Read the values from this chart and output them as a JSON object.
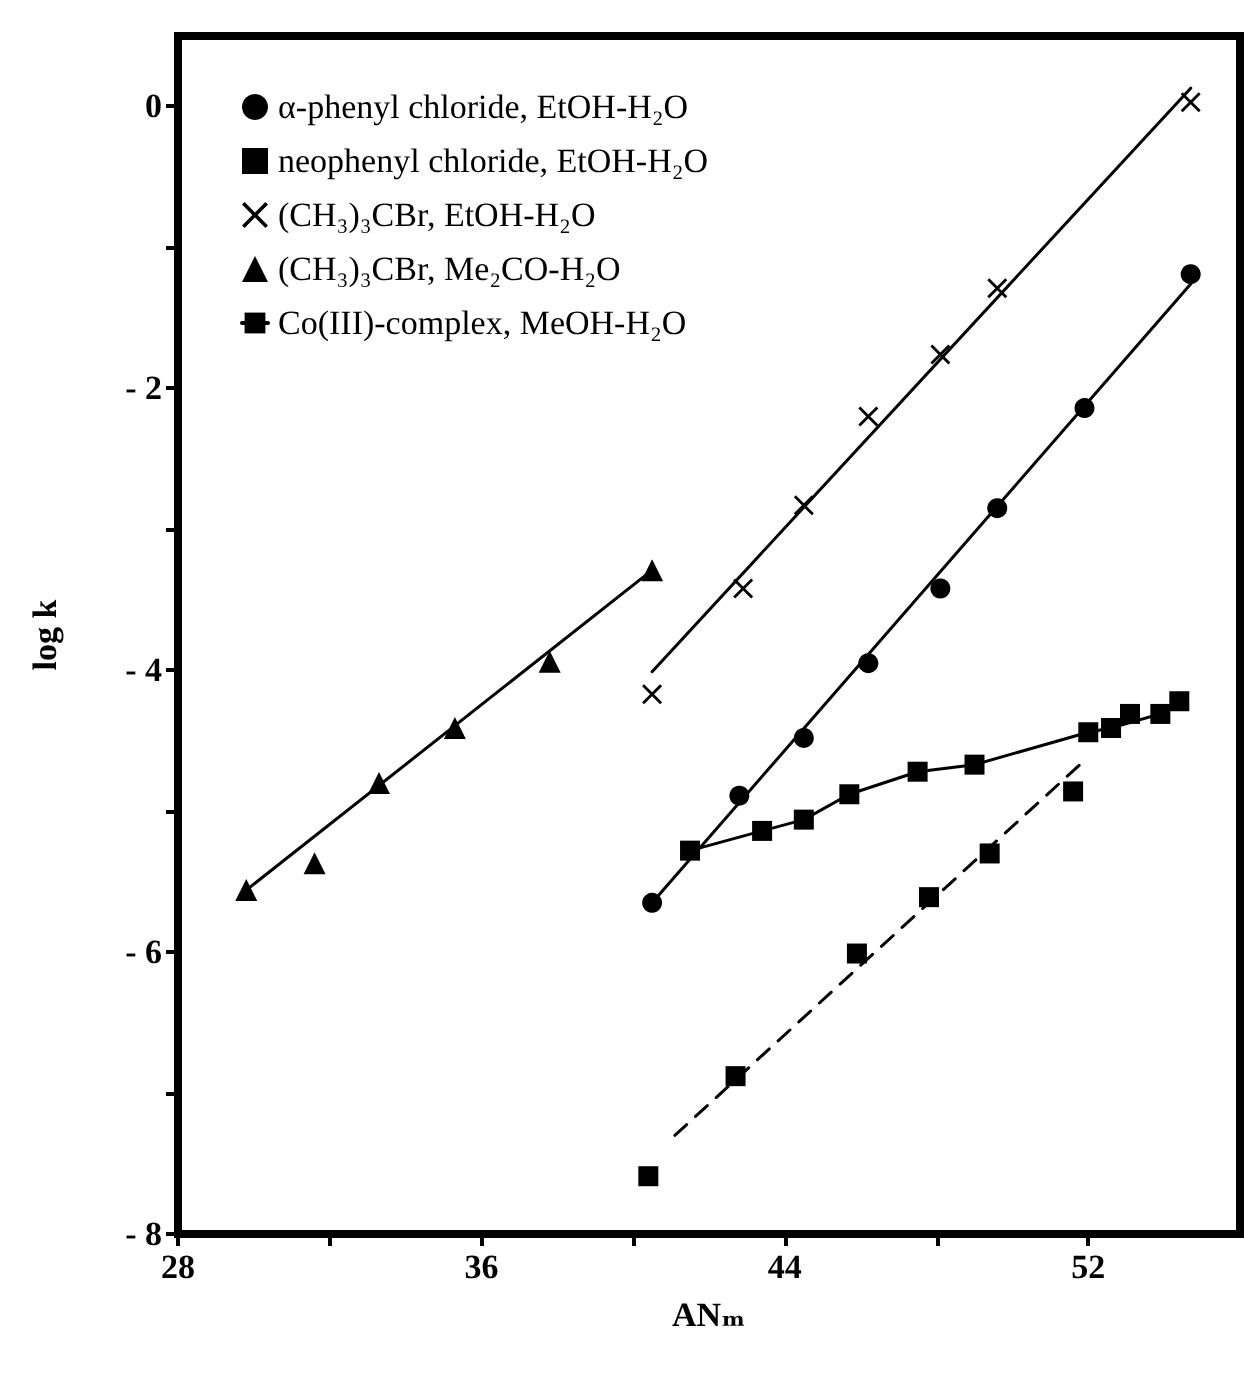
{
  "chart_data": {
    "type": "scatter",
    "xlabel": "ANₘ",
    "ylabel": "log k",
    "xlim": [
      28,
      56
    ],
    "ylim": [
      -8,
      0.5
    ],
    "xticks": [
      28,
      {
        "value": 32,
        "label": null
      },
      36,
      {
        "value": 40,
        "label": null
      },
      44,
      {
        "value": 48,
        "label": null
      },
      52
    ],
    "yticks": [
      {
        "value": -8,
        "label": "- 8"
      },
      {
        "value": -7,
        "label": null
      },
      {
        "value": -6,
        "label": "- 6"
      },
      {
        "value": -5,
        "label": null
      },
      {
        "value": -4,
        "label": "- 4"
      },
      {
        "value": -3,
        "label": null
      },
      {
        "value": -2,
        "label": "- 2"
      },
      {
        "value": -1,
        "label": null
      },
      0
    ],
    "grid": false,
    "legend": "top left",
    "series": [
      {
        "name": "α-phenyl chloride, EtOH-H₂O",
        "marker": "circle",
        "color": "#000000",
        "x": [
          40.5,
          42.8,
          44.5,
          46.2,
          48.1,
          49.6,
          51.9,
          54.7
        ],
        "values": [
          -5.65,
          -4.89,
          -4.48,
          -3.95,
          -3.42,
          -2.85,
          -2.14,
          -1.19
        ]
      },
      {
        "name": "neophenyl chloride, EtOH-H₂O",
        "marker": "square",
        "color": "#000000",
        "x": [
          40.4,
          42.7,
          45.9,
          47.8,
          49.4,
          51.6,
          53.1
        ],
        "values": [
          -7.59,
          -6.88,
          -6.01,
          -5.61,
          -5.3,
          -4.86,
          -4.31
        ]
      },
      {
        "name": "(CH₃)₃CBr, EtOH-H₂O",
        "marker": "cross",
        "color": "#000000",
        "x": [
          40.5,
          42.9,
          44.5,
          46.2,
          48.1,
          49.6,
          54.7
        ],
        "values": [
          -4.17,
          -3.42,
          -2.83,
          -2.2,
          -1.76,
          -1.29,
          0.03
        ]
      },
      {
        "name": "(CH₃)₃CBr, Me₂CO-H₂O",
        "marker": "triangle",
        "color": "#000000",
        "x": [
          29.8,
          31.6,
          33.3,
          35.3,
          37.8,
          40.5
        ],
        "values": [
          -5.56,
          -5.37,
          -4.8,
          -4.41,
          -3.94,
          -3.29
        ]
      },
      {
        "name": "Co(III)-complex, MeOH-H₂O",
        "type": "line",
        "marker": "square",
        "line_style": "solid",
        "color": "#000000",
        "x": [
          41.5,
          43.4,
          44.5,
          45.7,
          47.5,
          49.0,
          52.0,
          52.6,
          53.9,
          54.4
        ],
        "values": [
          -5.28,
          -5.14,
          -5.06,
          -4.88,
          -4.72,
          -4.67,
          -4.44,
          -4.41,
          -4.31,
          -4.22
        ]
      },
      {
        "type": "line",
        "marker": "none",
        "line_style": "solid",
        "color": "#000000",
        "x": [
          40.5,
          54.7
        ],
        "values": [
          -5.65,
          -1.26
        ]
      },
      {
        "type": "line",
        "marker": "none",
        "line_style": "dashed",
        "color": "#000000",
        "x": [
          41.1,
          51.9
        ],
        "values": [
          -7.3,
          -4.64
        ]
      },
      {
        "type": "line",
        "marker": "none",
        "line_style": "solid",
        "color": "#000000",
        "x": [
          40.5,
          54.7
        ],
        "values": [
          -4.01,
          0.13
        ]
      },
      {
        "type": "line",
        "marker": "none",
        "line_style": "solid",
        "color": "#000000",
        "x": [
          29.8,
          40.5
        ],
        "values": [
          -5.56,
          -3.29
        ]
      }
    ]
  }
}
